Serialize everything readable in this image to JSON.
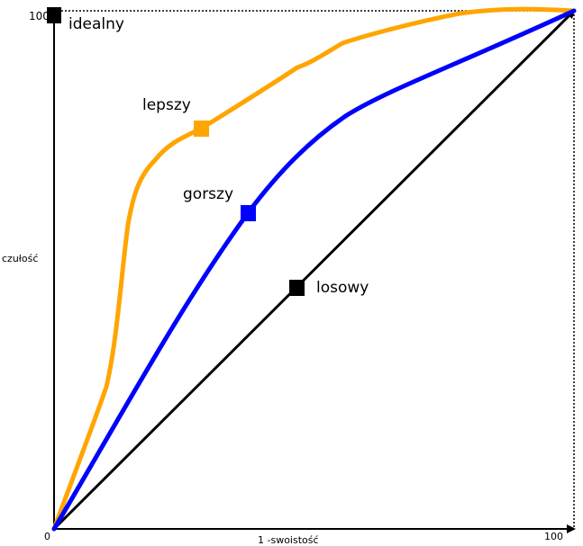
{
  "axes": {
    "y_label": "czułość",
    "x_label": "1 -swoistość",
    "origin_label": "0",
    "x_max_label": "100",
    "y_max_label": "100"
  },
  "points": {
    "ideal": "idealny",
    "better": "lepszy",
    "worse": "gorszy",
    "random": "losowy"
  },
  "colors": {
    "better_curve": "#FFA500",
    "worse_curve": "#0000FF",
    "random_line": "#000000",
    "axes": "#000000"
  }
}
